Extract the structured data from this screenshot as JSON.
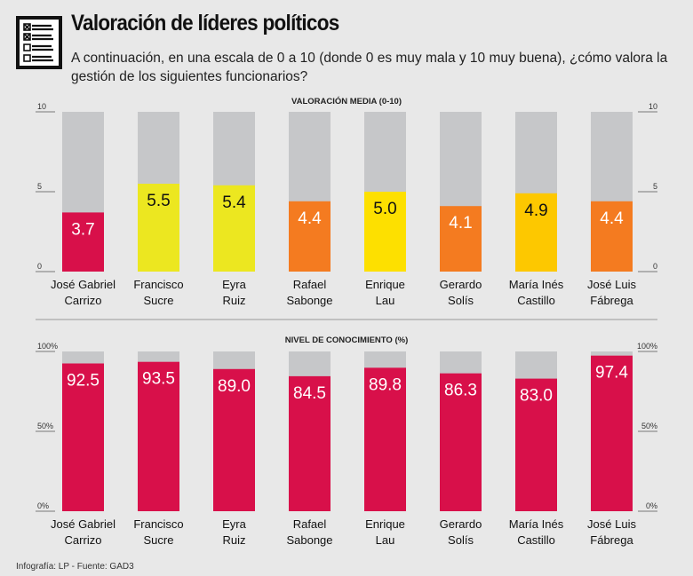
{
  "header": {
    "title": "Valoración de líderes políticos",
    "subtitle": "A continuación, en una escala de 0 a 10 (donde 0 es muy mala y 10 muy buena), ¿cómo valora la gestión de los siguientes funcionarios?",
    "icon": "checklist-icon"
  },
  "footer": "Infografía: LP - Fuente: GAD3",
  "colors": {
    "background": "#e8e8e8",
    "remainder": "#c6c7c9",
    "red": "#d8104a",
    "orange": "#f47b20",
    "yellow_green": "#ece720",
    "yellow": "#fde000",
    "gold": "#fdc800"
  },
  "chart_data": [
    {
      "type": "bar",
      "title": "VALORACIÓN MEDIA (0-10)",
      "categories": [
        [
          "José Gabriel",
          "Carrizo"
        ],
        [
          "Francisco",
          "Sucre"
        ],
        [
          "Eyra",
          "Ruiz"
        ],
        [
          "Rafael",
          "Sabonge"
        ],
        [
          "Enrique",
          "Lau"
        ],
        [
          "Gerardo",
          "Solís"
        ],
        [
          "María Inés",
          "Castillo"
        ],
        [
          "José Luis",
          "Fábrega"
        ]
      ],
      "values": [
        3.7,
        5.5,
        5.4,
        4.4,
        5.0,
        4.1,
        4.9,
        4.4
      ],
      "value_labels": [
        "3.7",
        "5.5",
        "5.4",
        "4.4",
        "5.0",
        "4.1",
        "4.9",
        "4.4"
      ],
      "bar_colors": [
        "#d8104a",
        "#ece720",
        "#ece720",
        "#f47b20",
        "#fde000",
        "#f47b20",
        "#fdc800",
        "#f47b20"
      ],
      "label_colors": [
        "#ffffff",
        "#111111",
        "#111111",
        "#ffffff",
        "#111111",
        "#ffffff",
        "#111111",
        "#ffffff"
      ],
      "ylim": [
        0,
        10
      ],
      "yticks": [
        "0",
        "5",
        "10"
      ],
      "ytick_values": [
        0,
        5,
        10
      ],
      "grid": false
    },
    {
      "type": "bar",
      "title": "NIVEL DE CONOCIMIENTO (%)",
      "categories": [
        [
          "José Gabriel",
          "Carrizo"
        ],
        [
          "Francisco",
          "Sucre"
        ],
        [
          "Eyra",
          "Ruiz"
        ],
        [
          "Rafael",
          "Sabonge"
        ],
        [
          "Enrique",
          "Lau"
        ],
        [
          "Gerardo",
          "Solís"
        ],
        [
          "María Inés",
          "Castillo"
        ],
        [
          "José Luis",
          "Fábrega"
        ]
      ],
      "values": [
        92.5,
        93.5,
        89.0,
        84.5,
        89.8,
        86.3,
        83.0,
        97.4
      ],
      "value_labels": [
        "92.5",
        "93.5",
        "89.0",
        "84.5",
        "89.8",
        "86.3",
        "83.0",
        "97.4"
      ],
      "bar_colors": [
        "#d8104a",
        "#d8104a",
        "#d8104a",
        "#d8104a",
        "#d8104a",
        "#d8104a",
        "#d8104a",
        "#d8104a"
      ],
      "label_colors": [
        "#ffffff",
        "#ffffff",
        "#ffffff",
        "#ffffff",
        "#ffffff",
        "#ffffff",
        "#ffffff",
        "#ffffff"
      ],
      "ylim": [
        0,
        100
      ],
      "yticks": [
        "0%",
        "50%",
        "100%"
      ],
      "ytick_values": [
        0,
        50,
        100
      ],
      "grid": false
    }
  ]
}
